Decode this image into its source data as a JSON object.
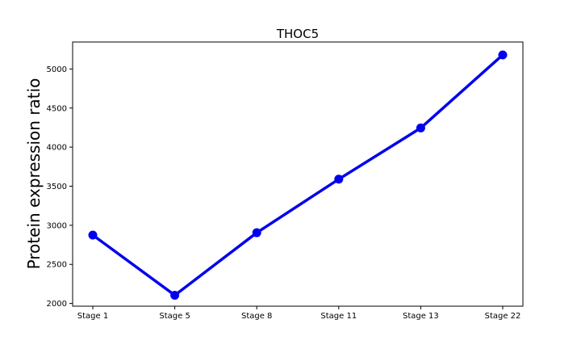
{
  "chart_data": {
    "type": "line",
    "title": "THOC5",
    "xlabel": "",
    "ylabel": "Protein expression ratio",
    "categories": [
      "Stage 1",
      "Stage 5",
      "Stage 8",
      "Stage 11",
      "Stage 13",
      "Stage 22"
    ],
    "series": [
      {
        "values": [
          2875,
          2105,
          2905,
          3590,
          4245,
          5180
        ]
      }
    ],
    "ylim": [
      1965,
      5345
    ],
    "yticks": [
      2000,
      2500,
      3000,
      3500,
      4000,
      4500,
      5000
    ],
    "grid": false,
    "line_color": "#0000ee",
    "marker": "circle"
  }
}
